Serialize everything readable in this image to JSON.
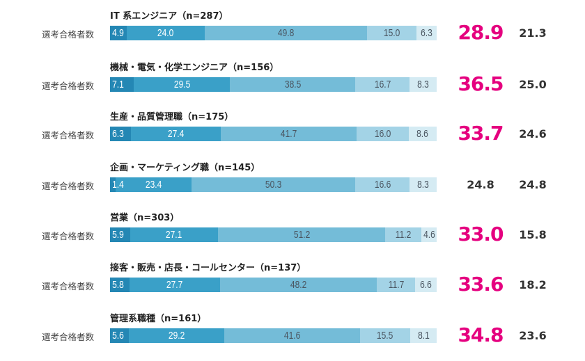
{
  "chart_data": {
    "type": "bar",
    "orientation": "horizontal",
    "stacked": true,
    "row_label": "選考合格者数",
    "colors": [
      "#2487b4",
      "#3aa0c8",
      "#74bcd8",
      "#a3d3e6",
      "#d5ebf3"
    ],
    "highlight_color": "#e5007f",
    "rows": [
      {
        "title": "IT 系エンジニア（n=287）",
        "values": [
          4.9,
          24.0,
          49.8,
          15.0,
          6.3
        ],
        "highlight": "28.9",
        "highlighted": true,
        "right_value": "21.3"
      },
      {
        "title": "機械・電気・化学エンジニア（n=156）",
        "values": [
          7.1,
          29.5,
          38.5,
          16.7,
          8.3
        ],
        "highlight": "36.5",
        "highlighted": true,
        "right_value": "25.0"
      },
      {
        "title": "生産・品質管理職（n=175）",
        "values": [
          6.3,
          27.4,
          41.7,
          16.0,
          8.6
        ],
        "highlight": "33.7",
        "highlighted": true,
        "right_value": "24.6"
      },
      {
        "title": "企画・マーケティング職（n=145）",
        "values": [
          1.4,
          23.4,
          50.3,
          16.6,
          8.3
        ],
        "highlight": "24.8",
        "highlighted": false,
        "right_value": "24.8"
      },
      {
        "title": "営業（n=303）",
        "values": [
          5.9,
          27.1,
          51.2,
          11.2,
          4.6
        ],
        "highlight": "33.0",
        "highlighted": true,
        "right_value": "15.8"
      },
      {
        "title": "接客・販売・店長・コールセンター（n=137）",
        "values": [
          5.8,
          27.7,
          48.2,
          11.7,
          6.6
        ],
        "highlight": "33.6",
        "highlighted": true,
        "right_value": "18.2"
      },
      {
        "title": "管理系職種（n=161）",
        "values": [
          5.6,
          29.2,
          41.6,
          15.5,
          8.1
        ],
        "highlight": "34.8",
        "highlighted": true,
        "right_value": "23.6"
      }
    ]
  }
}
